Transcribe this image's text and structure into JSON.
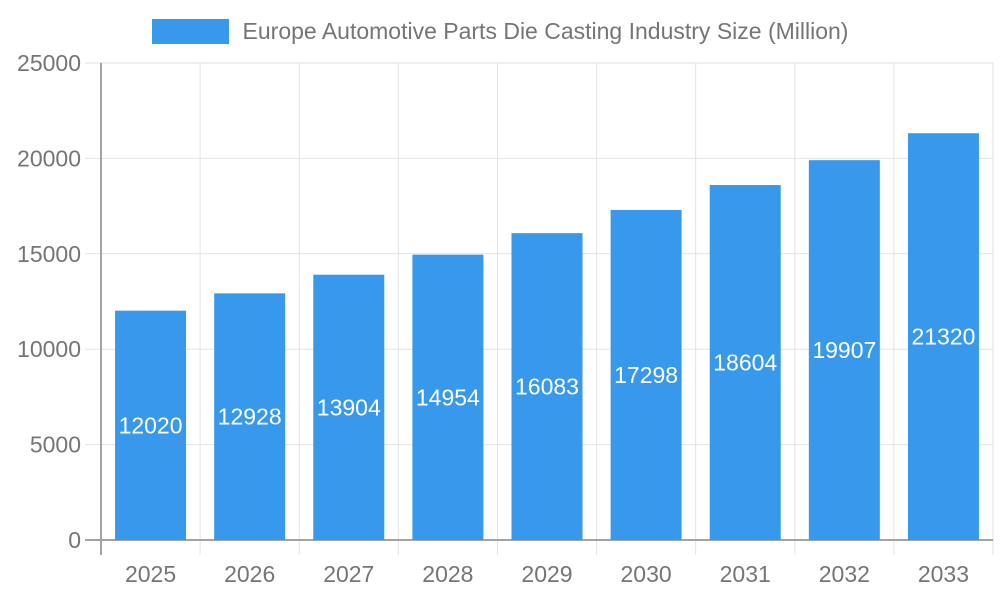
{
  "legend": {
    "label": "Europe Automotive Parts Die Casting Industry Size (Million)",
    "swatch_color": "#3899EC"
  },
  "colors": {
    "background": "#ffffff",
    "bar": "#3899EC",
    "axis_line": "#a3a3a3",
    "grid_line": "#e2e2e2",
    "axis_text": "#757575",
    "bar_label_text": "#ffffff"
  },
  "chart_data": {
    "type": "bar",
    "title": "Europe Automotive Parts Die Casting Industry Size (Million)",
    "categories": [
      "2025",
      "2026",
      "2027",
      "2028",
      "2029",
      "2030",
      "2031",
      "2032",
      "2033"
    ],
    "series": [
      {
        "name": "Europe Automotive Parts Die Casting Industry Size (Million)",
        "color": "#3899EC",
        "values": [
          12020,
          12928,
          13904,
          14954,
          16083,
          17298,
          18604,
          19907,
          21320
        ]
      }
    ],
    "xlabel": "",
    "ylabel": "",
    "ylim": [
      0,
      25000
    ],
    "yticks": [
      0,
      5000,
      10000,
      15000,
      20000,
      25000
    ],
    "grid": true,
    "legend_position": "top",
    "value_label_position": "inside-middle",
    "value_label_color": "#ffffff"
  }
}
